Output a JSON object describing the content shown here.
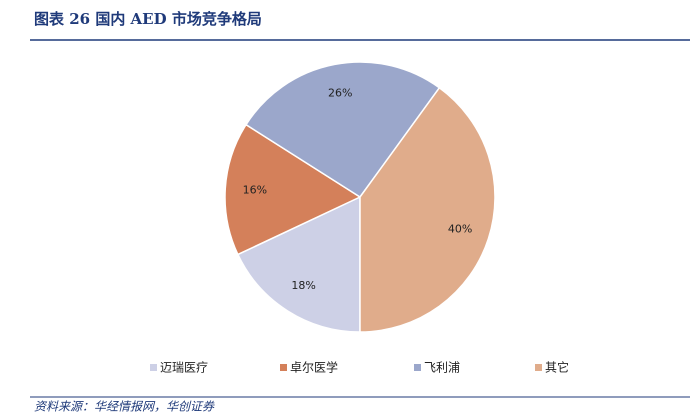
{
  "chart_data": {
    "type": "pie",
    "title": "图表 26   国内 AED 市场竞争格局",
    "categories": [
      "迈瑞医疗",
      "卓尔医学",
      "飞利浦",
      "其它"
    ],
    "values": [
      18,
      16,
      26,
      40
    ],
    "value_labels": [
      "18%",
      "16%",
      "26%",
      "40%"
    ],
    "colors": [
      "#cdd0e6",
      "#d4805a",
      "#9ba7cb",
      "#e0ac8b"
    ],
    "source": "资料来源：华经情报网，华创证券"
  }
}
